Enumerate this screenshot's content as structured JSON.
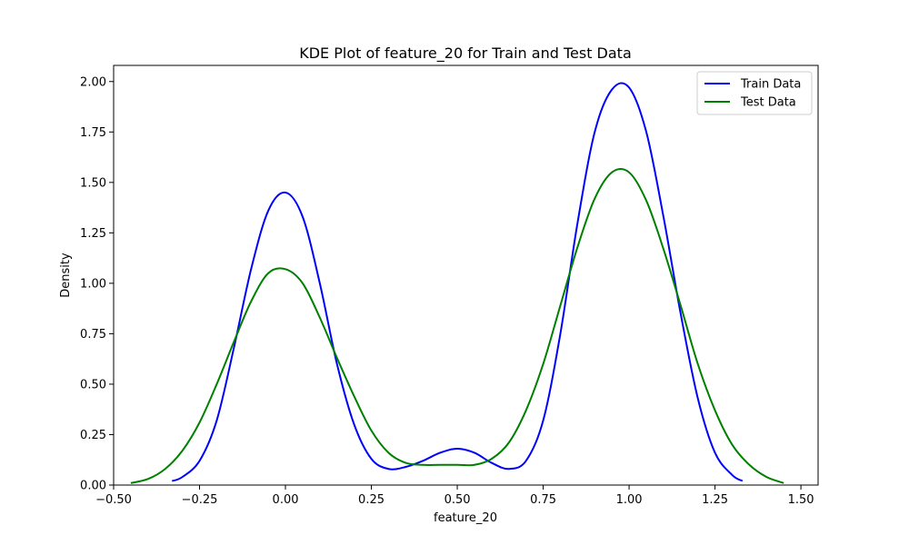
{
  "chart_data": {
    "type": "line",
    "title": "KDE Plot of feature_20 for Train and Test Data",
    "xlabel": "feature_20",
    "ylabel": "Density",
    "xlim": [
      -0.5,
      1.55
    ],
    "ylim": [
      0,
      2.08
    ],
    "xticks": [
      -0.5,
      -0.25,
      0.0,
      0.25,
      0.5,
      0.75,
      1.0,
      1.25,
      1.5
    ],
    "xtick_labels": [
      "−0.50",
      "−0.25",
      "0.00",
      "0.25",
      "0.50",
      "0.75",
      "1.00",
      "1.25",
      "1.50"
    ],
    "yticks": [
      0.0,
      0.25,
      0.5,
      0.75,
      1.0,
      1.25,
      1.5,
      1.75,
      2.0
    ],
    "ytick_labels": [
      "0.00",
      "0.25",
      "0.50",
      "0.75",
      "1.00",
      "1.25",
      "1.50",
      "1.75",
      "2.00"
    ],
    "grid": false,
    "legend_position": "top-right",
    "series": [
      {
        "name": "Train Data",
        "color": "#0000ff",
        "x": [
          -0.33,
          -0.3,
          -0.25,
          -0.2,
          -0.15,
          -0.1,
          -0.05,
          0.0,
          0.05,
          0.1,
          0.15,
          0.2,
          0.25,
          0.3,
          0.35,
          0.4,
          0.45,
          0.5,
          0.55,
          0.6,
          0.65,
          0.7,
          0.75,
          0.8,
          0.85,
          0.9,
          0.95,
          1.0,
          1.05,
          1.1,
          1.15,
          1.2,
          1.25,
          1.3,
          1.33
        ],
        "y": [
          0.02,
          0.04,
          0.12,
          0.32,
          0.68,
          1.07,
          1.36,
          1.45,
          1.33,
          1.0,
          0.6,
          0.3,
          0.13,
          0.08,
          0.09,
          0.12,
          0.16,
          0.18,
          0.16,
          0.11,
          0.08,
          0.12,
          0.32,
          0.75,
          1.3,
          1.75,
          1.96,
          1.97,
          1.75,
          1.33,
          0.85,
          0.43,
          0.16,
          0.05,
          0.02
        ]
      },
      {
        "name": "Test Data",
        "color": "#008000",
        "x": [
          -0.45,
          -0.4,
          -0.35,
          -0.3,
          -0.25,
          -0.2,
          -0.15,
          -0.1,
          -0.05,
          0.0,
          0.05,
          0.1,
          0.15,
          0.2,
          0.25,
          0.3,
          0.35,
          0.4,
          0.45,
          0.5,
          0.55,
          0.6,
          0.65,
          0.7,
          0.75,
          0.8,
          0.85,
          0.9,
          0.95,
          1.0,
          1.05,
          1.1,
          1.15,
          1.2,
          1.25,
          1.3,
          1.35,
          1.4,
          1.45
        ],
        "y": [
          0.01,
          0.03,
          0.08,
          0.17,
          0.31,
          0.5,
          0.71,
          0.91,
          1.05,
          1.07,
          1.0,
          0.83,
          0.63,
          0.44,
          0.27,
          0.16,
          0.11,
          0.1,
          0.1,
          0.1,
          0.1,
          0.13,
          0.21,
          0.37,
          0.6,
          0.89,
          1.18,
          1.42,
          1.55,
          1.55,
          1.41,
          1.17,
          0.89,
          0.6,
          0.37,
          0.2,
          0.1,
          0.04,
          0.01
        ]
      }
    ]
  }
}
